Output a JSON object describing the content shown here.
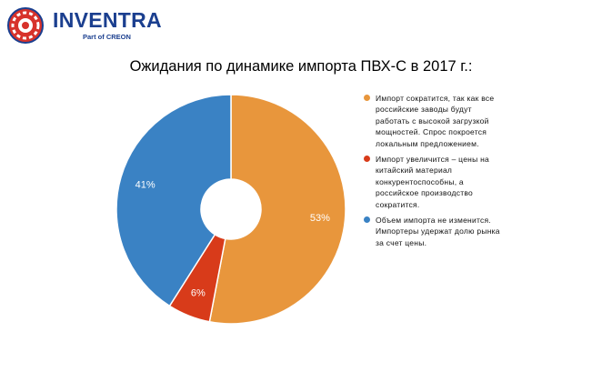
{
  "brand": {
    "name": "INVENTRA",
    "subtitle": "Part of CREON"
  },
  "colors": {
    "brand_blue": "#1b3f8f",
    "brand_red": "#d7322b",
    "series_orange": "#e8963c",
    "series_red": "#d83b1a",
    "series_blue": "#3a82c4"
  },
  "chart_data": {
    "type": "pie",
    "style": "donut",
    "title": "Ожидания по динамике импорта ПВХ-С в 2017 г.:",
    "legend_position": "right",
    "slices": [
      {
        "label": "Импорт сократится, так как все российские заводы будут работать с высокой загрузкой мощностей. Спрос покроется локальным предложением.",
        "value": 53,
        "value_label": "53%",
        "color": "#e8963c"
      },
      {
        "label": "Импорт увеличится – цены на китайский материал конкурентоспособны, а российское производство сократится.",
        "value": 6,
        "value_label": "6%",
        "color": "#d83b1a"
      },
      {
        "label": "Объем импорта не изменится. Импортеры удержат долю рынка за счет цены.",
        "value": 41,
        "value_label": "41%",
        "color": "#3a82c4"
      }
    ]
  }
}
